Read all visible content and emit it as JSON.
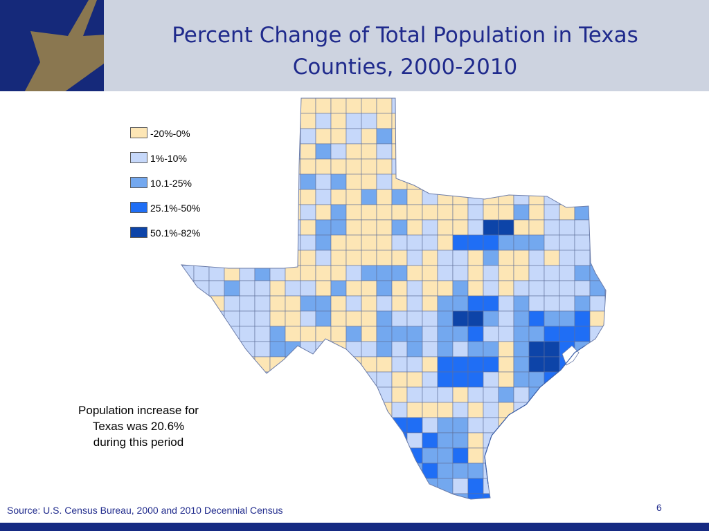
{
  "slide": {
    "title_line_1": "Percent Change of Total Population in Texas",
    "title_line_2": "Counties, 2000-2010",
    "page_number": "6",
    "source": "Source: U.S. Census Bureau, 2000 and 2010 Decennial Census"
  },
  "theme": {
    "header_band": "#cdd3e0",
    "corner_navy": "#15297a",
    "star_gold": "#8a7750",
    "title_color": "#1f2a8c",
    "bottom_bar": "#162a82"
  },
  "note": {
    "line_1": "Population increase for",
    "line_2": "Texas was 20.6%",
    "line_3": "during this period"
  },
  "legend": {
    "items": [
      {
        "label": "-20%-0%",
        "color": "#fde6b5"
      },
      {
        "label": "1%-10%",
        "color": "#c6d8fa"
      },
      {
        "label": "10.1-25%",
        "color": "#73a8ef"
      },
      {
        "label": "25.1%-50%",
        "color": "#1f6ef5"
      },
      {
        "label": "50.1%-82%",
        "color": "#0d44a8"
      }
    ]
  },
  "map": {
    "region": "Texas",
    "unit": "county",
    "bay_color": "#ffffff"
  }
}
